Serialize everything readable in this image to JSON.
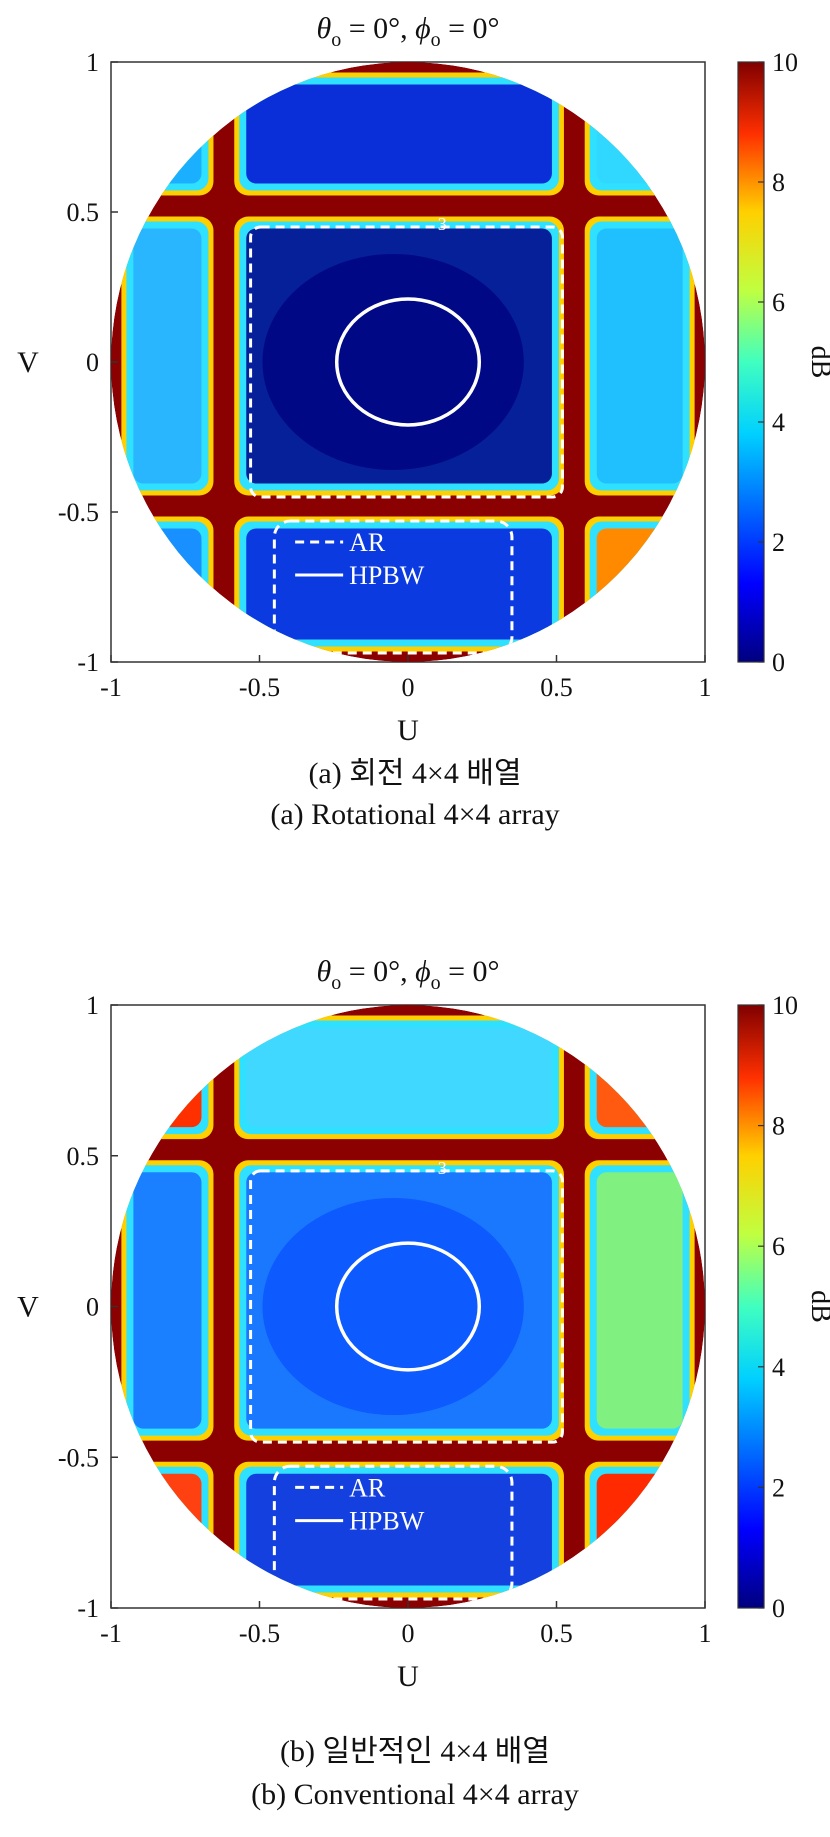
{
  "chart_data": [
    {
      "type": "heatmap",
      "panel_label": "(a)",
      "title": "θo = 0°, ϕo = 0°",
      "title_parts": {
        "theta": "θ",
        "phi": "ϕ",
        "sub": "o",
        "value": "= 0°"
      },
      "xlabel": "U",
      "ylabel": "V",
      "xlim": [
        -1,
        1
      ],
      "ylim": [
        -1,
        1
      ],
      "xticks": [
        "-1",
        "-0.5",
        "0",
        "0.5",
        "1"
      ],
      "yticks": [
        "1",
        "0.5",
        "0",
        "-0.5",
        "-1"
      ],
      "colorbar": {
        "label": "dB",
        "range": [
          0,
          10
        ],
        "ticks": [
          "10",
          "8",
          "6",
          "4",
          "2",
          "0"
        ],
        "colormap": "jet"
      },
      "legend": {
        "placement": "bottom-center",
        "entries": [
          {
            "name": "AR",
            "style": "dashed"
          },
          {
            "name": "HPBW",
            "style": "solid"
          }
        ]
      },
      "contour_label": "3",
      "hpbw_circle": {
        "center": [
          0,
          0
        ],
        "radius_u": 0.24,
        "radius_v": 0.21
      },
      "grid": false,
      "caption_korean": "(a) 회전 4×4 배열",
      "caption_english": "(a) Rotational 4×4 array"
    },
    {
      "type": "heatmap",
      "panel_label": "(b)",
      "title": "θo = 0°, ϕo = 0°",
      "title_parts": {
        "theta": "θ",
        "phi": "ϕ",
        "sub": "o",
        "value": "= 0°"
      },
      "xlabel": "U",
      "ylabel": "V",
      "xlim": [
        -1,
        1
      ],
      "ylim": [
        -1,
        1
      ],
      "xticks": [
        "-1",
        "-0.5",
        "0",
        "0.5",
        "1"
      ],
      "yticks": [
        "1",
        "0.5",
        "0",
        "-0.5",
        "-1"
      ],
      "colorbar": {
        "label": "dB",
        "range": [
          0,
          10
        ],
        "ticks": [
          "10",
          "8",
          "6",
          "4",
          "2",
          "0"
        ],
        "colormap": "jet"
      },
      "legend": {
        "placement": "bottom-center",
        "entries": [
          {
            "name": "AR",
            "style": "dashed"
          },
          {
            "name": "HPBW",
            "style": "solid"
          }
        ]
      },
      "contour_label": "3",
      "hpbw_circle": {
        "center": [
          0,
          0
        ],
        "radius_u": 0.24,
        "radius_v": 0.21
      },
      "grid": false,
      "caption_korean": "(b) 일반적인 4×4 배열",
      "caption_english": "(b) Conventional 4×4 array"
    }
  ],
  "colors": {
    "background_red": "#8b0000",
    "low": "#00007f",
    "mid": "#1e5cff",
    "high": "#ffb000",
    "contour": "#ffffff"
  }
}
